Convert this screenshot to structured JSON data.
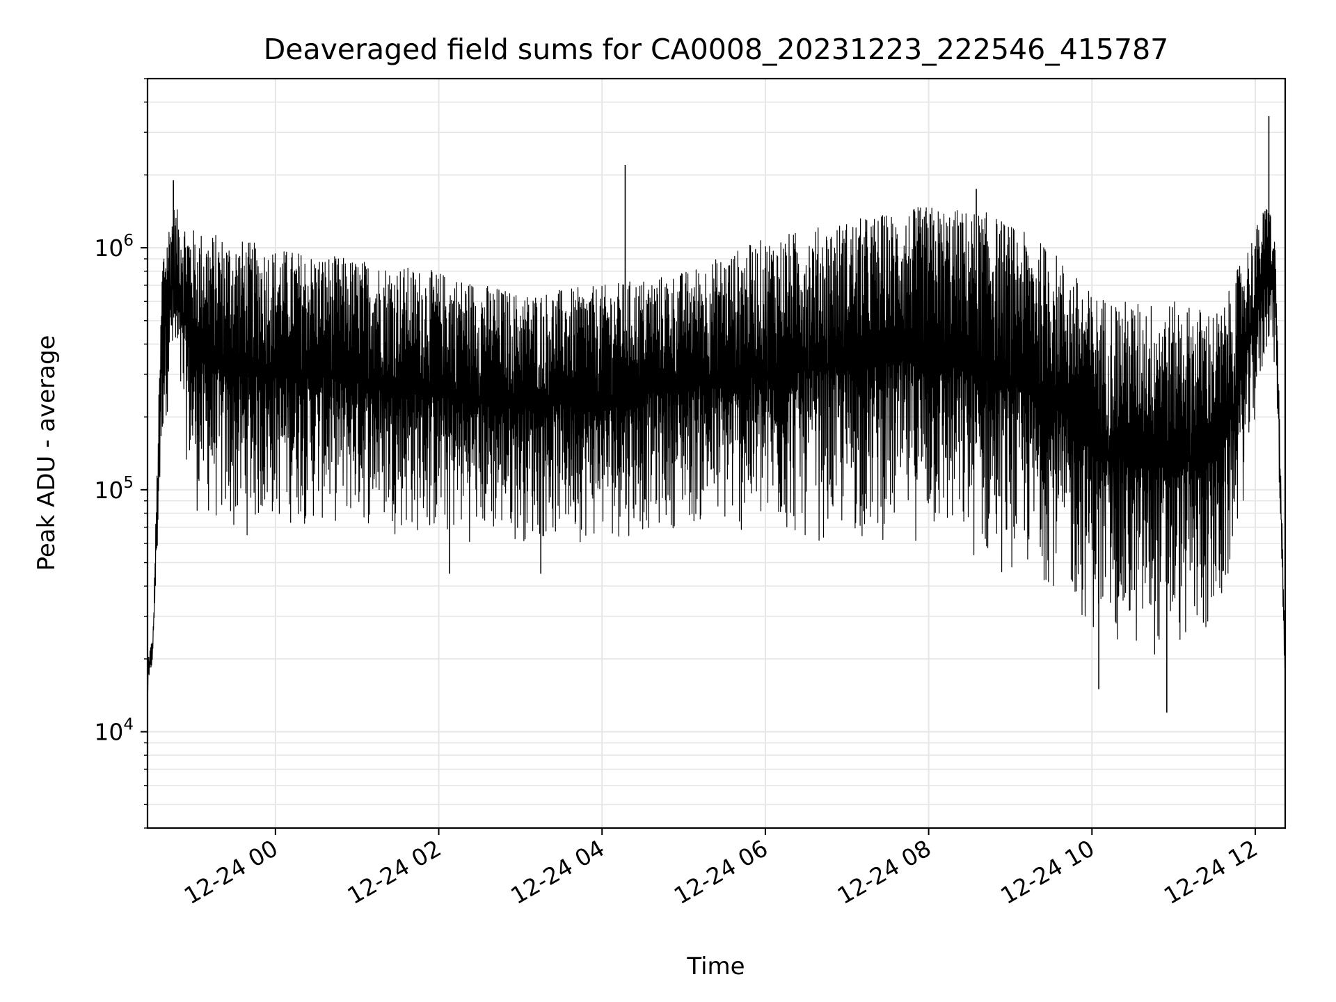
{
  "chart_data": {
    "type": "line",
    "title": "Deaveraged field sums for CA0008_20231223_222546_415787",
    "xlabel": "Time",
    "ylabel": "Peak ADU - average",
    "y_scale": "log",
    "ylim": [
      4000,
      5000000
    ],
    "xlim": [
      "2023-12-23 22:26",
      "2023-12-24 12:22"
    ],
    "grid": true,
    "legend": "none",
    "line_color": "#000000",
    "x_tick_labels": [
      {
        "t": "2023-12-24 00:00",
        "label": "12-24 00"
      },
      {
        "t": "2023-12-24 02:00",
        "label": "12-24 02"
      },
      {
        "t": "2023-12-24 04:00",
        "label": "12-24 04"
      },
      {
        "t": "2023-12-24 06:00",
        "label": "12-24 06"
      },
      {
        "t": "2023-12-24 08:00",
        "label": "12-24 08"
      },
      {
        "t": "2023-12-24 10:00",
        "label": "12-24 10"
      },
      {
        "t": "2023-12-24 12:00",
        "label": "12-24 12"
      }
    ],
    "y_tick_labels": [
      {
        "value": 10000,
        "base": "10",
        "exp": "4"
      },
      {
        "value": 100000,
        "base": "10",
        "exp": "5"
      },
      {
        "value": 1000000,
        "base": "10",
        "exp": "6"
      }
    ],
    "series": [
      {
        "envelope": [
          {
            "t": "2023-12-23 22:26",
            "lo": 13000,
            "hi": 20000
          },
          {
            "t": "2023-12-23 22:30",
            "lo": 20000,
            "hi": 25000
          },
          {
            "t": "2023-12-23 22:37",
            "lo": 150000,
            "hi": 1000000
          },
          {
            "t": "2023-12-23 22:45",
            "lo": 300000,
            "hi": 1500000
          },
          {
            "t": "2023-12-23 23:00",
            "lo": 80000,
            "hi": 1200000
          },
          {
            "t": "2023-12-23 23:30",
            "lo": 60000,
            "hi": 1100000
          },
          {
            "t": "2023-12-24 00:00",
            "lo": 70000,
            "hi": 1000000
          },
          {
            "t": "2023-12-24 01:00",
            "lo": 70000,
            "hi": 900000
          },
          {
            "t": "2023-12-24 02:00",
            "lo": 60000,
            "hi": 800000
          },
          {
            "t": "2023-12-24 03:00",
            "lo": 60000,
            "hi": 650000
          },
          {
            "t": "2023-12-24 04:00",
            "lo": 60000,
            "hi": 700000
          },
          {
            "t": "2023-12-24 05:00",
            "lo": 70000,
            "hi": 800000
          },
          {
            "t": "2023-12-24 06:00",
            "lo": 60000,
            "hi": 1100000
          },
          {
            "t": "2023-12-24 07:00",
            "lo": 60000,
            "hi": 1300000
          },
          {
            "t": "2023-12-24 08:00",
            "lo": 60000,
            "hi": 1500000
          },
          {
            "t": "2023-12-24 08:45",
            "lo": 45000,
            "hi": 1400000
          },
          {
            "t": "2023-12-24 09:30",
            "lo": 40000,
            "hi": 1000000
          },
          {
            "t": "2023-12-24 10:00",
            "lo": 25000,
            "hi": 650000
          },
          {
            "t": "2023-12-24 10:30",
            "lo": 20000,
            "hi": 600000
          },
          {
            "t": "2023-12-24 11:00",
            "lo": 20000,
            "hi": 600000
          },
          {
            "t": "2023-12-24 11:35",
            "lo": 25000,
            "hi": 550000
          },
          {
            "t": "2023-12-24 11:50",
            "lo": 80000,
            "hi": 900000
          },
          {
            "t": "2023-12-24 12:10",
            "lo": 400000,
            "hi": 1600000
          },
          {
            "t": "2023-12-24 12:15",
            "lo": 300000,
            "hi": 1000000
          },
          {
            "t": "2023-12-24 12:22",
            "lo": 15000,
            "hi": 20000
          }
        ],
        "spikes": [
          {
            "t": "2023-12-23 22:45",
            "value": 1900000
          },
          {
            "t": "2023-12-24 04:17",
            "value": 2200000
          },
          {
            "t": "2023-12-24 08:35",
            "value": 1750000
          },
          {
            "t": "2023-12-24 12:10",
            "value": 3500000
          },
          {
            "t": "2023-12-24 02:08",
            "value": 45000
          },
          {
            "t": "2023-12-24 03:15",
            "value": 45000
          },
          {
            "t": "2023-12-24 10:05",
            "value": 15000
          },
          {
            "t": "2023-12-24 10:55",
            "value": 12000
          }
        ]
      }
    ]
  }
}
